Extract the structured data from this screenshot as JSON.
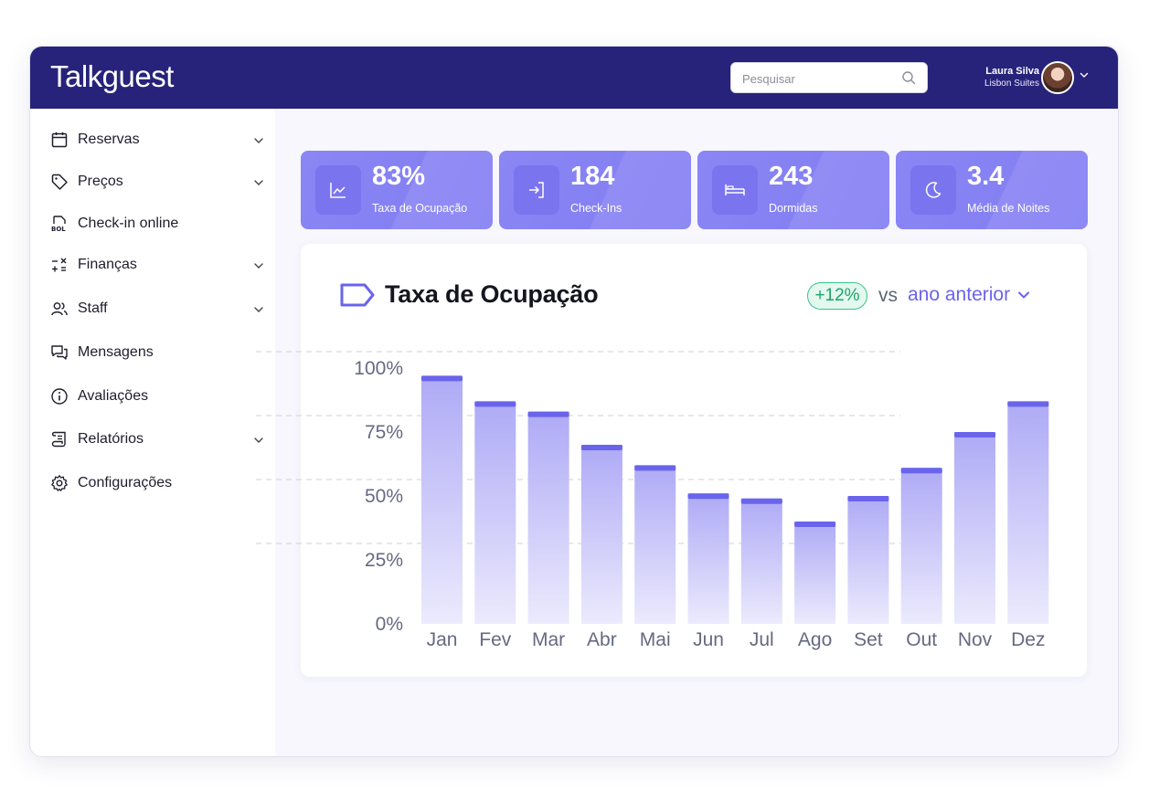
{
  "app": {
    "logo": "Talkguest"
  },
  "header": {
    "search_placeholder": "Pesquisar",
    "user": {
      "name": "Laura Silva",
      "org": "Lisbon Suites"
    }
  },
  "sidebar": {
    "items": [
      {
        "label": "Reservas",
        "icon": "calendar-icon",
        "expandable": true
      },
      {
        "label": "Preços",
        "icon": "tag-icon",
        "expandable": true
      },
      {
        "label": "Check-in online",
        "icon": "bol-document-icon",
        "expandable": false
      },
      {
        "label": "Finanças",
        "icon": "calculator-icon",
        "expandable": true
      },
      {
        "label": "Staff",
        "icon": "users-icon",
        "expandable": true
      },
      {
        "label": "Mensagens",
        "icon": "chat-icon",
        "expandable": false
      },
      {
        "label": "Avaliações",
        "icon": "info-icon",
        "expandable": false
      },
      {
        "label": "Relatórios",
        "icon": "scroll-icon",
        "expandable": true
      },
      {
        "label": "Configurações",
        "icon": "gear-icon",
        "expandable": false
      }
    ]
  },
  "kpis": [
    {
      "value": "83%",
      "label": "Taxa de Ocupação",
      "icon": "line-chart-icon"
    },
    {
      "value": "184",
      "label": "Check-Ins",
      "icon": "login-icon"
    },
    {
      "value": "243",
      "label": "Dormidas",
      "icon": "bed-icon"
    },
    {
      "value": "3.4",
      "label": "Média de Noites",
      "icon": "moon-icon"
    }
  ],
  "occupancy_card": {
    "title": "Taxa de Ocupação",
    "change_badge": "+12%",
    "vs_label": "vs",
    "compare_label": "ano anterior"
  },
  "chart_data": {
    "type": "bar",
    "categories": [
      "Jan",
      "Fev",
      "Mar",
      "Abr",
      "Mai",
      "Jun",
      "Jul",
      "Ago",
      "Set",
      "Out",
      "Nov",
      "Dez"
    ],
    "values": [
      97,
      87,
      83,
      70,
      62,
      51,
      49,
      40,
      50,
      61,
      75,
      87
    ],
    "ylim": [
      0,
      100
    ],
    "yticks": [
      "0%",
      "25%",
      "50%",
      "75%",
      "100%"
    ],
    "grid": true,
    "colors": {
      "bar_top": "#6a64ec",
      "bar_fill_top": "#aeaaf6",
      "bar_fill_bottom": "#eceafd"
    }
  }
}
